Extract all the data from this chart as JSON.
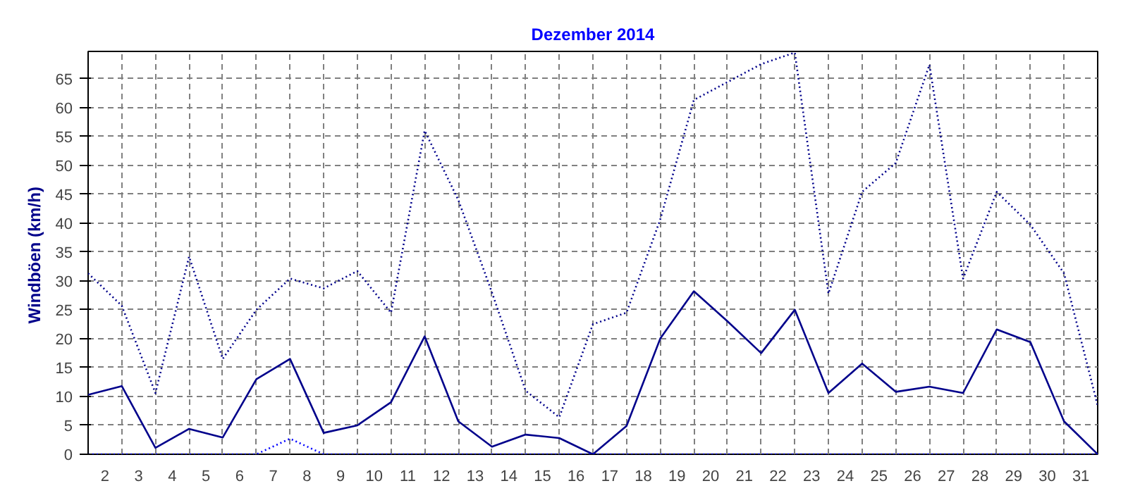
{
  "chart_data": {
    "type": "line",
    "title": "Dezember 2014",
    "ylabel": "Windböen  (km/h)",
    "x": [
      1.5,
      2.5,
      3.5,
      4.5,
      5.5,
      6.5,
      7.5,
      8.5,
      9.5,
      10.5,
      11.5,
      12.5,
      13.5,
      14.5,
      15.5,
      16.5,
      17.5,
      18.5,
      19.5,
      20.5,
      21.5,
      22.5,
      23.5,
      24.5,
      25.5,
      26.5,
      27.5,
      28.5,
      29.5,
      30.5,
      31.5
    ],
    "series": [
      {
        "color": "#00008b",
        "line_style": "dotted",
        "values": [
          31.3,
          25.7,
          10.6,
          34.2,
          16.5,
          25,
          30.4,
          28.7,
          31.7,
          24.5,
          56,
          44,
          28,
          11,
          6.4,
          22.5,
          24.5,
          40.6,
          61.3,
          64.4,
          67.5,
          69.5,
          27.8,
          45.4,
          50.4,
          67.4,
          30.4,
          45.4,
          39.7,
          31.3,
          8.4
        ]
      },
      {
        "color": "#00008b",
        "line_style": "solid",
        "values": [
          10.3,
          11.8,
          1.1,
          4.4,
          2.9,
          13,
          16.5,
          3.7,
          5,
          9,
          20.4,
          5.7,
          1.3,
          3.4,
          2.8,
          0,
          4.9,
          20,
          28.2,
          23,
          17.5,
          25,
          10.6,
          15.7,
          10.8,
          11.7,
          10.6,
          21.6,
          19.4,
          5.7,
          0
        ]
      },
      {
        "color": "#0000ff",
        "line_style": "dotted",
        "values": [
          0,
          0,
          0,
          0,
          0,
          0,
          2.7,
          0,
          0,
          0,
          0,
          0,
          0,
          0,
          0,
          0,
          0,
          0,
          0,
          0,
          0,
          0,
          0,
          0,
          0,
          0,
          0,
          0,
          0,
          0,
          0
        ]
      }
    ],
    "xlim": [
      1.5,
      31.5
    ],
    "xticks": [
      2,
      3,
      4,
      5,
      6,
      7,
      8,
      9,
      10,
      11,
      12,
      13,
      14,
      15,
      16,
      17,
      18,
      19,
      20,
      21,
      22,
      23,
      24,
      25,
      26,
      27,
      28,
      29,
      30,
      31
    ],
    "ylim": [
      0,
      69.7
    ],
    "yticks": [
      0,
      5,
      10,
      15,
      20,
      25,
      30,
      35,
      40,
      45,
      50,
      55,
      60,
      65
    ],
    "grid": true,
    "marker": "none"
  }
}
